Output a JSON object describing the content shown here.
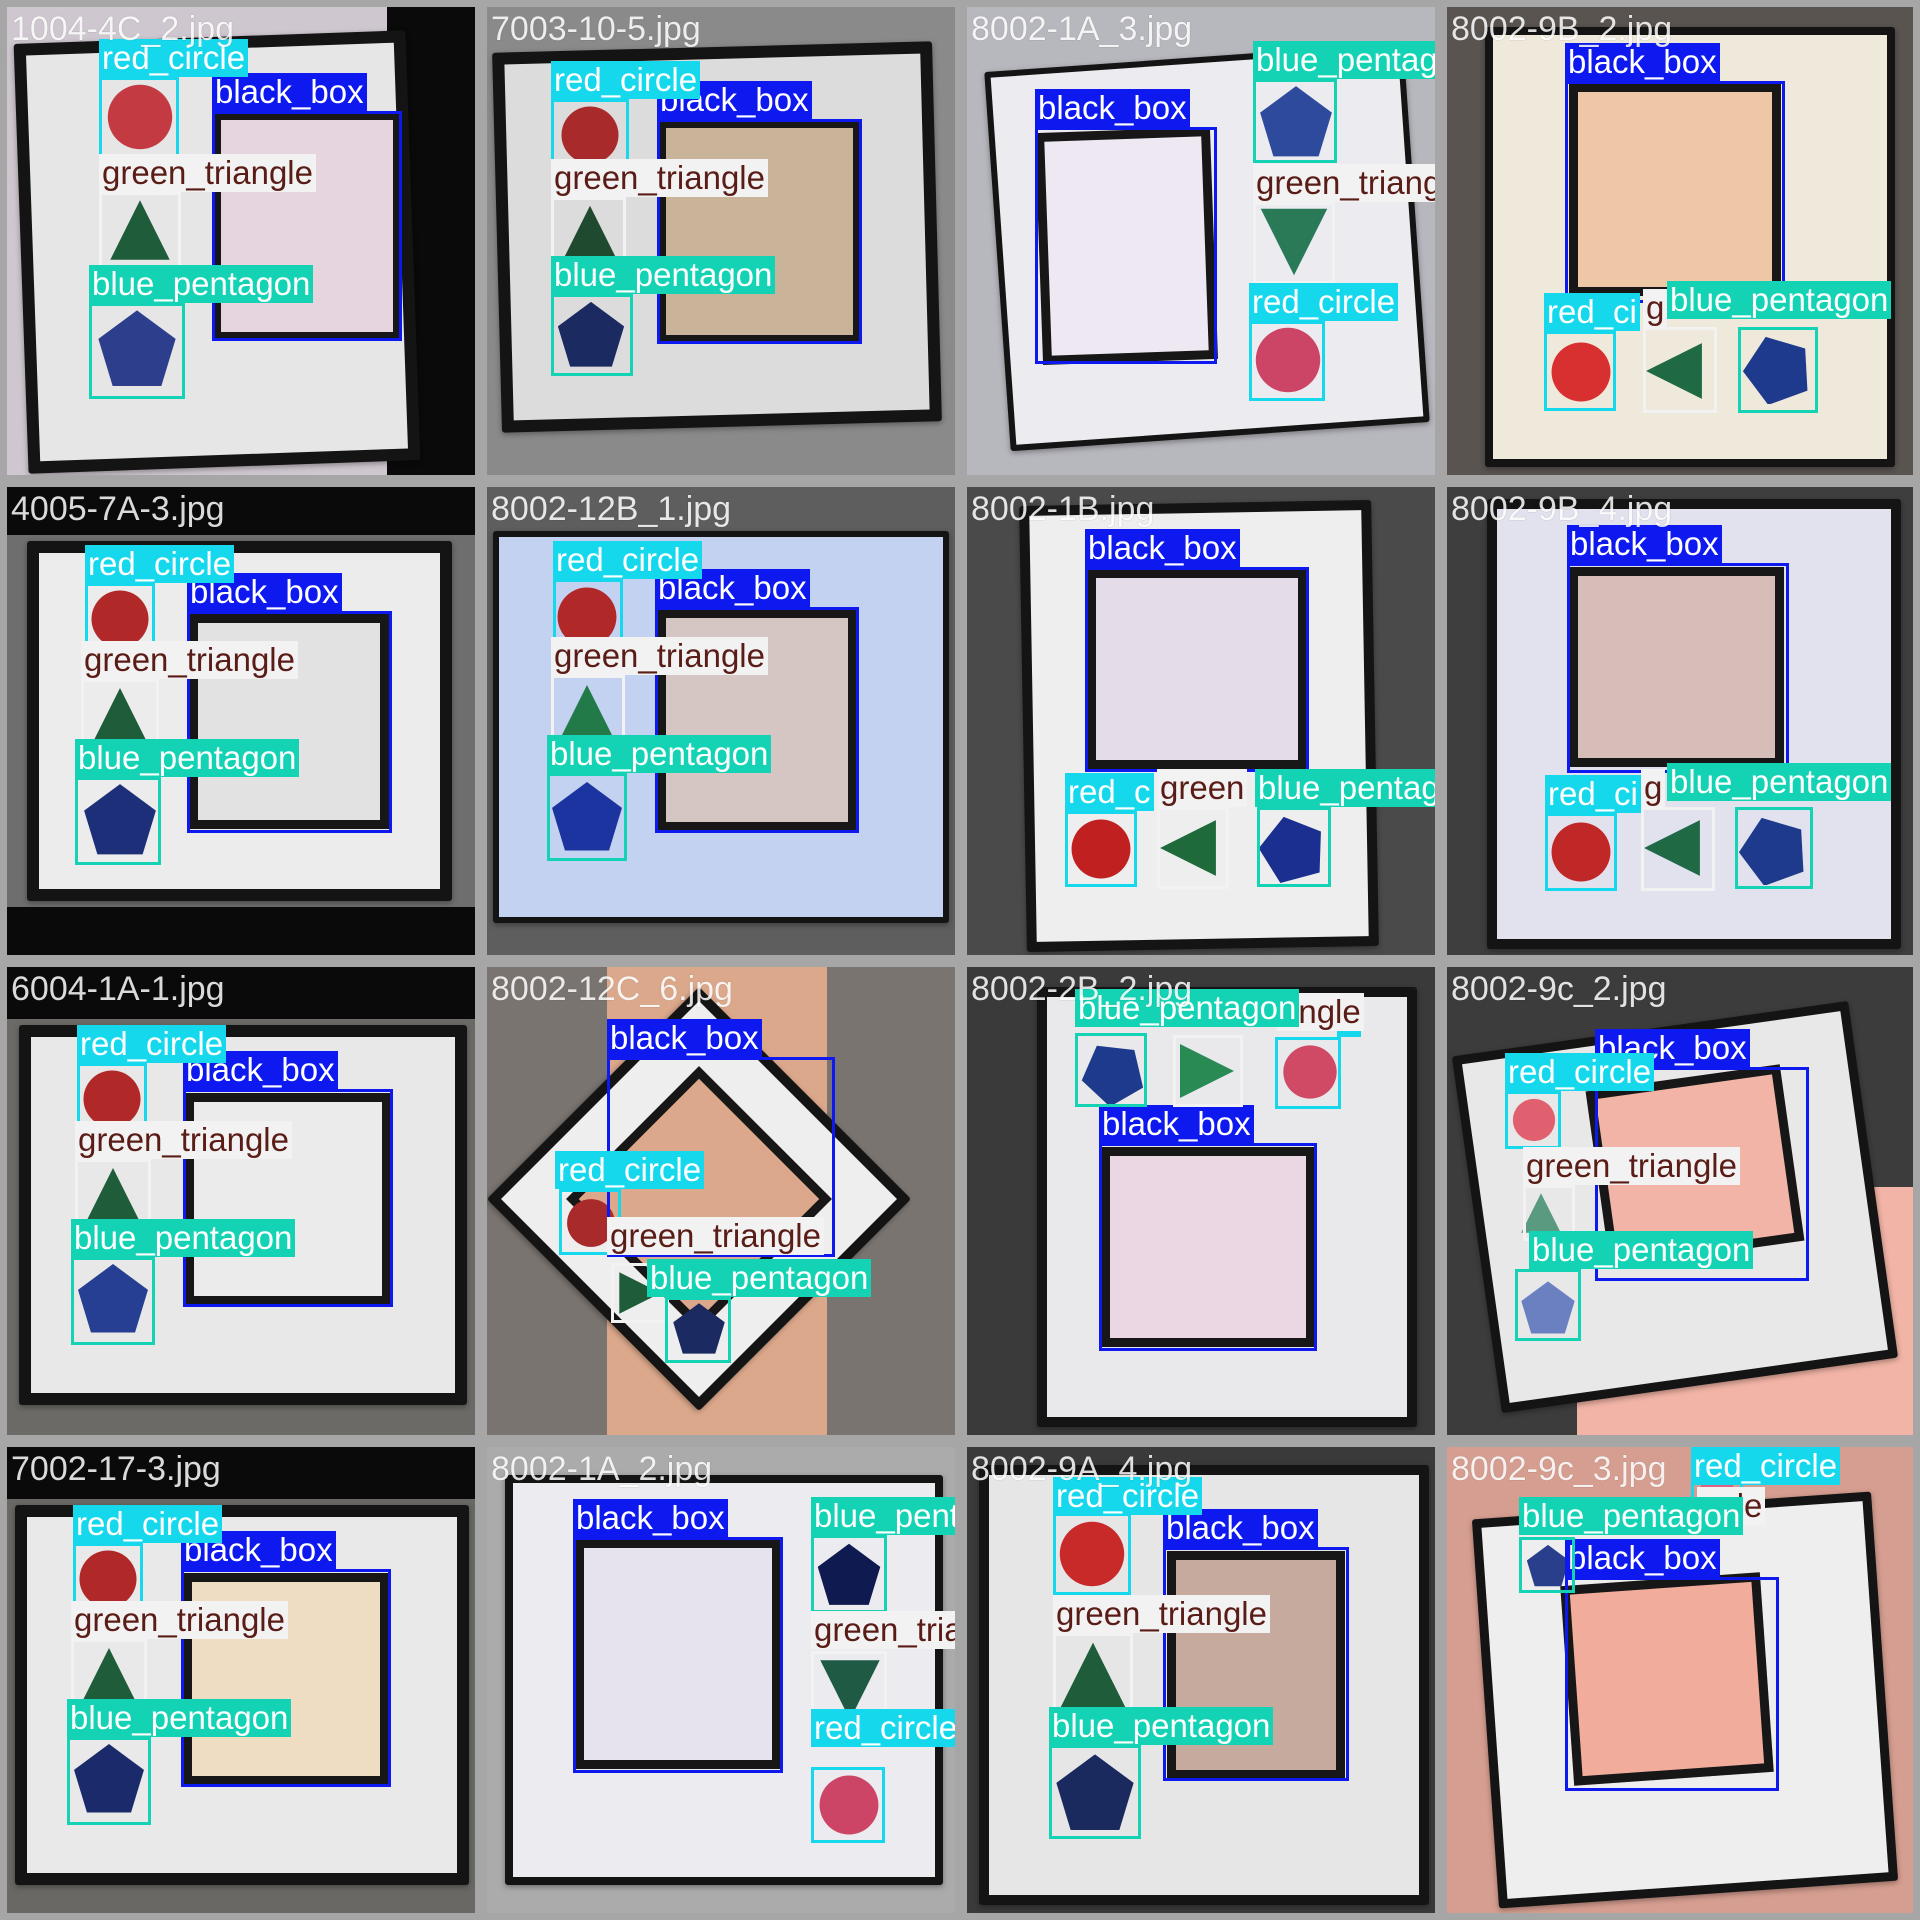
{
  "colors": {
    "black_box": "#0e19f0",
    "red_circle": "#16d8ec",
    "green_triangle": "#f2f2f2",
    "blue_pentagon": "#13d3b4",
    "label_text_light": "#ffffff",
    "label_text_dark": "#5a1c16",
    "red_shape": "#c43a42",
    "green_shape": "#1f5c3a",
    "blue_shape": "#2d3f8c"
  },
  "tiles": [
    {
      "filename": "1004-4C_2.jpg",
      "scene": {
        "bg": "#cfc7cf",
        "paper": "#e6e6e6",
        "window": "#e6d4de"
      },
      "labels": {
        "black_box": "black_box",
        "red_circle": "red_circle",
        "green_triangle": "green_triangle",
        "blue_pentagon": "blue_pentagon"
      }
    },
    {
      "filename": "7003-10-5.jpg",
      "scene": {
        "bg": "#8a8a8a",
        "paper": "#dcdcdc",
        "window": "#c9b49a"
      },
      "labels": {
        "black_box": "black_box",
        "red_circle": "red_circle",
        "green_triangle": "green_triangle",
        "blue_pentagon": "blue_pentagon"
      }
    },
    {
      "filename": "8002-1A_3.jpg",
      "scene": {
        "bg": "#b7b7be",
        "paper": "#ebebf0",
        "window": "#eee8f2"
      },
      "labels": {
        "black_box": "black_box",
        "red_circle": "red_circle",
        "green_triangle": "green_triangle",
        "blue_pentagon": "blue_pentagon"
      }
    },
    {
      "filename": "8002-9B_2.jpg",
      "scene": {
        "bg": "#5a5450",
        "paper": "#efe9dc",
        "window": "#eec7a6"
      },
      "labels": {
        "black_box": "black_box",
        "red_circle": "red_ci",
        "green_triangle": "g",
        "blue_pentagon": "blue_pentagon"
      }
    },
    {
      "filename": "4005-7A-3.jpg",
      "scene": {
        "bg": "#6e6e6e",
        "paper": "#ececec",
        "window": "#e2e2e2"
      },
      "labels": {
        "black_box": "black_box",
        "red_circle": "red_circle",
        "green_triangle": "green_triangle",
        "blue_pentagon": "blue_pentagon"
      }
    },
    {
      "filename": "8002-12B_1.jpg",
      "scene": {
        "bg": "#5e5e5e",
        "paper": "#c3d2f0",
        "window": "#d5c5c3"
      },
      "labels": {
        "black_box": "black_box",
        "red_circle": "red_circle",
        "green_triangle": "green_triangle",
        "blue_pentagon": "blue_pentagon"
      }
    },
    {
      "filename": "8002-1B.jpg",
      "scene": {
        "bg": "#4a4a4a",
        "paper": "#eeeeee",
        "window": "#e5dcea"
      },
      "labels": {
        "black_box": "black_box",
        "red_circle": "red_c",
        "green_triangle": "green",
        "blue_pentagon": "blue_pentagon"
      }
    },
    {
      "filename": "8002-9B_4.jpg",
      "scene": {
        "bg": "#3e3e3e",
        "paper": "#e2e2ee",
        "window": "#d6bdb8"
      },
      "labels": {
        "black_box": "black_box",
        "red_circle": "red_ci",
        "green_triangle": "g",
        "blue_pentagon": "blue_pentagon"
      }
    },
    {
      "filename": "6004-1A-1.jpg",
      "scene": {
        "bg": "#6c6a66",
        "paper": "#e8e8e8",
        "window": "#ebebeb"
      },
      "labels": {
        "black_box": "black_box",
        "red_circle": "red_circle",
        "green_triangle": "green_triangle",
        "blue_pentagon": "blue_pentagon"
      }
    },
    {
      "filename": "8002-12C_6.jpg",
      "scene": {
        "bg": "#7a7470",
        "paper": "#eeeeee",
        "window": "#dca88c"
      },
      "labels": {
        "black_box": "black_box",
        "red_circle": "red_circle",
        "green_triangle": "green_triangle",
        "blue_pentagon": "blue_pentagon"
      }
    },
    {
      "filename": "8002-2B_2.jpg",
      "scene": {
        "bg": "#3a3a3a",
        "paper": "#e9e9ec",
        "window": "#ead7e3"
      },
      "labels": {
        "black_box": "black_box",
        "red_circle": "e",
        "green_triangle": "angle",
        "blue_pentagon": "blue_pentagon"
      }
    },
    {
      "filename": "8002-9c_2.jpg",
      "scene": {
        "bg": "#3c3c3c",
        "paper": "#e8e8e8",
        "window": "#f2b4a6"
      },
      "labels": {
        "black_box": "black_box",
        "red_circle": "red_circle",
        "green_triangle": "green_triangle",
        "blue_pentagon": "blue_pentagon"
      }
    },
    {
      "filename": "7002-17-3.jpg",
      "scene": {
        "bg": "#6a6864",
        "paper": "#e9e9e9",
        "window": "#eedcc3"
      },
      "labels": {
        "black_box": "black_box",
        "red_circle": "red_circle",
        "green_triangle": "green_triangle",
        "blue_pentagon": "blue_pentagon"
      }
    },
    {
      "filename": "8002-1A_2.jpg",
      "scene": {
        "bg": "#ababab",
        "paper": "#ececf0",
        "window": "#e6e2ee"
      },
      "labels": {
        "black_box": "black_box",
        "red_circle": "red_circle",
        "green_triangle": "green_triangle",
        "blue_pentagon": "blue_pentagon"
      }
    },
    {
      "filename": "8002-9A_4.jpg",
      "scene": {
        "bg": "#3a3a3a",
        "paper": "#e6e6e6",
        "window": "#c7aa9e"
      },
      "labels": {
        "black_box": "black_box",
        "red_circle": "red_circle",
        "green_triangle": "green_triangle",
        "blue_pentagon": "blue_pentagon"
      }
    },
    {
      "filename": "8002-9c_3.jpg",
      "scene": {
        "bg": "#d69e90",
        "paper": "#eeeeee",
        "window": "#f2ac9c"
      },
      "labels": {
        "black_box": "black_box",
        "red_circle": "red_circle",
        "green_triangle": "ngle",
        "blue_pentagon": "blue_pentagon"
      }
    }
  ]
}
